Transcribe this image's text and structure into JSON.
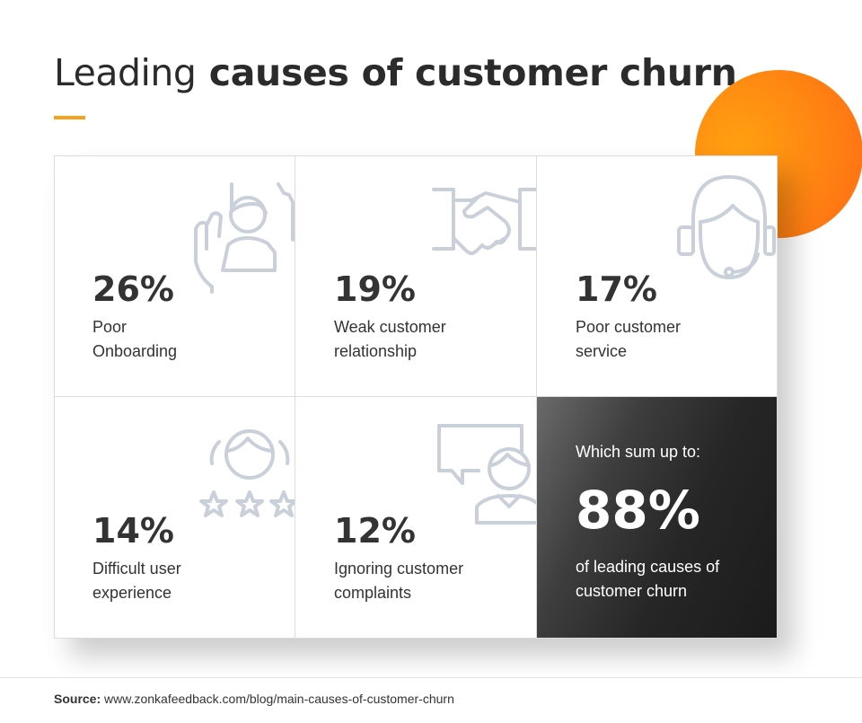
{
  "header": {
    "title_light": "Leading",
    "title_bold": "causes of customer churn",
    "accent_color": "#f7a21b"
  },
  "chart_data": {
    "type": "table",
    "unit": "%",
    "items": [
      {
        "value": 26,
        "display": "26%",
        "label": "Poor Onboarding",
        "icon": "hand-raising-person-icon"
      },
      {
        "value": 19,
        "display": "19%",
        "label": "Weak customer relationship",
        "icon": "handshake-icon"
      },
      {
        "value": 17,
        "display": "17%",
        "label": "Poor customer service",
        "icon": "headset-agent-icon"
      },
      {
        "value": 14,
        "display": "14%",
        "label": "Difficult user experience",
        "icon": "user-rating-stars-icon"
      },
      {
        "value": 12,
        "display": "12%",
        "label": "Ignoring customer complaints",
        "icon": "person-speech-bubble-icon"
      }
    ],
    "summary": {
      "intro": "Which sum up to:",
      "value": 88,
      "display": "88%",
      "description": "of leading causes of customer churn"
    }
  },
  "colors": {
    "icon_stroke": "#c9d0da",
    "orange_circle": "#ff8a12",
    "summary_background": "#262626"
  },
  "footer": {
    "source_label": "Source:",
    "source_url": "www.zonkafeedback.com/blog/main-causes-of-customer-churn"
  }
}
